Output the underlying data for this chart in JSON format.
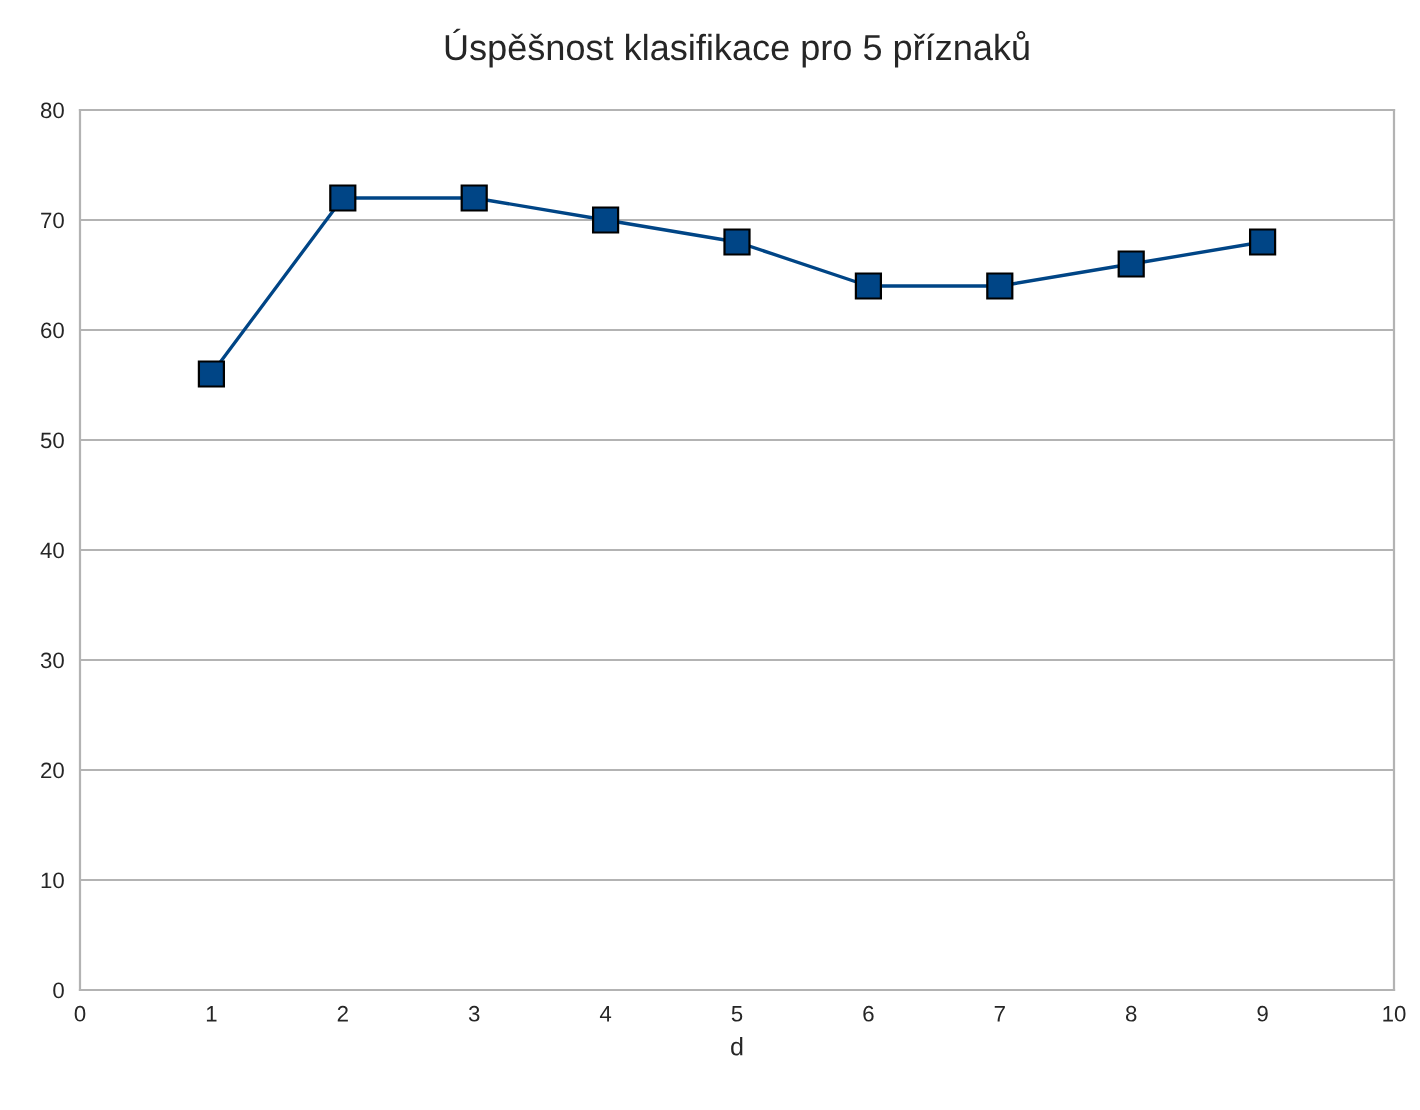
{
  "chart_data": {
    "type": "line",
    "title": "Úspěšnost klasifikace pro 5 příznaků",
    "xlabel": "d",
    "x": [
      1,
      2,
      3,
      4,
      5,
      6,
      7,
      8,
      9
    ],
    "series": [
      {
        "color": "#004586",
        "values": [
          56,
          72,
          72,
          70,
          68,
          64,
          64,
          66,
          68
        ]
      }
    ],
    "xlim": [
      0,
      10
    ],
    "xticks": [
      0,
      1,
      2,
      3,
      4,
      5,
      6,
      7,
      8,
      9,
      10
    ],
    "ylim": [
      0,
      80
    ],
    "yticks": [
      0,
      10,
      20,
      30,
      40,
      50,
      60,
      70,
      80
    ],
    "grid": "y",
    "marker": "square",
    "line_style": "solid",
    "legend": false
  }
}
